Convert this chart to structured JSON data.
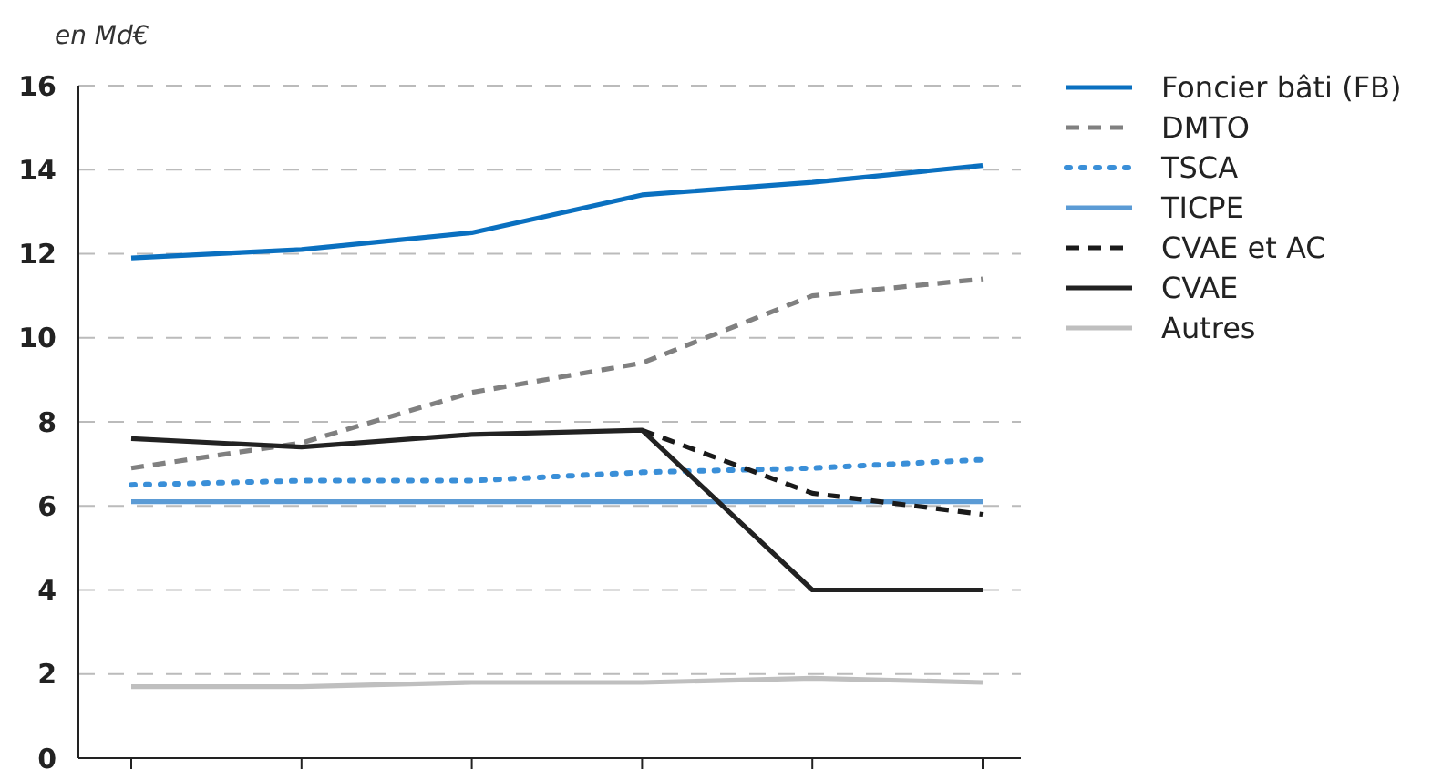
{
  "chart_data": {
    "type": "line",
    "ylabel": "en Md€",
    "categories": [
      null,
      null,
      null,
      null,
      null,
      null
    ],
    "ylim": [
      0,
      16
    ],
    "yticks": [
      0,
      2,
      4,
      6,
      8,
      10,
      12,
      14,
      16
    ],
    "grid": "y",
    "legend": "right",
    "marker": "none",
    "series": [
      {
        "name": "Foncier bâti (FB)",
        "color": "#0a70c0",
        "line_style": "solid",
        "values": [
          11.9,
          12.1,
          12.5,
          13.4,
          13.7,
          14.1
        ]
      },
      {
        "name": "DMTO",
        "color": "#808080",
        "line_style": "dashed",
        "values": [
          6.9,
          7.5,
          8.7,
          9.4,
          11.0,
          11.4
        ]
      },
      {
        "name": "TSCA",
        "color": "#3a8fd8",
        "line_style": "dotted",
        "values": [
          6.5,
          6.6,
          6.6,
          6.8,
          6.9,
          7.1
        ]
      },
      {
        "name": "TICPE",
        "color": "#5b9bd5",
        "line_style": "solid",
        "values": [
          6.1,
          6.1,
          6.1,
          6.1,
          6.1,
          6.1
        ]
      },
      {
        "name": "CVAE et AC",
        "color": "#1a1a1a",
        "line_style": "dashed",
        "values": [
          null,
          null,
          null,
          7.8,
          6.3,
          5.8
        ]
      },
      {
        "name": "CVAE",
        "color": "#222222",
        "line_style": "solid",
        "values": [
          7.6,
          7.4,
          7.7,
          7.8,
          4.0,
          4.0
        ]
      },
      {
        "name": "Autres",
        "color": "#bfbfbf",
        "line_style": "solid",
        "values": [
          1.7,
          1.7,
          1.8,
          1.8,
          1.9,
          1.8
        ]
      }
    ]
  }
}
